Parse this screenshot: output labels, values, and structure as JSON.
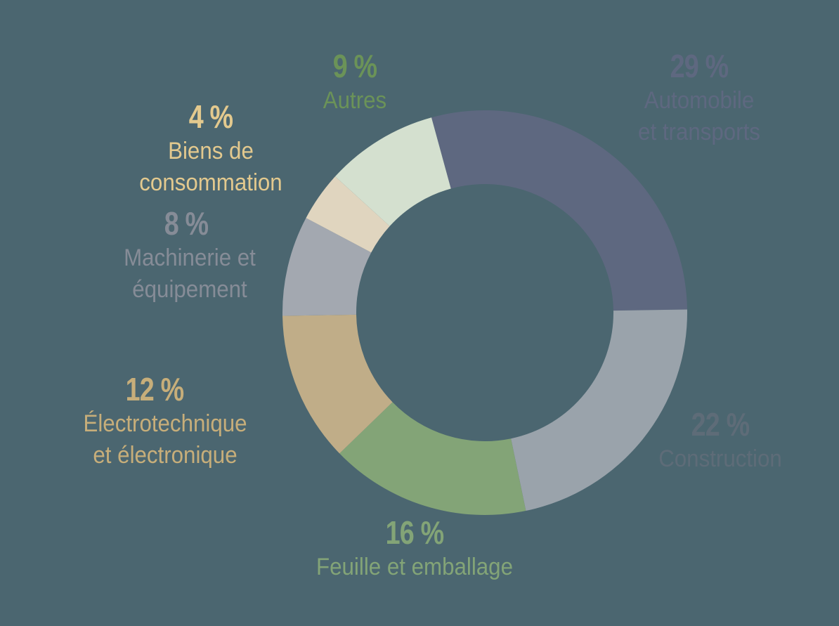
{
  "chart_data": {
    "type": "pie",
    "variant": "donut",
    "title": "",
    "unit": "%",
    "start_angle_deg": -15.3,
    "direction": "clockwise",
    "categories": [
      "Automobile et transports",
      "Construction",
      "Feuille et emballage",
      "Électrotechnique et électronique",
      "Machinerie et équipement",
      "Biens de consommation",
      "Autres"
    ],
    "values": [
      29,
      22,
      16,
      12,
      8,
      4,
      9
    ],
    "slices": [
      {
        "label": "Automobile\net transports",
        "pct_text": "29 %",
        "value": 29,
        "color": "#5e6880",
        "text_color": "#5e6880"
      },
      {
        "label": "Construction",
        "pct_text": "22 %",
        "value": 22,
        "color": "#9aa3ab",
        "text_color": "#5e6c78"
      },
      {
        "label": "Feuille et emballage",
        "pct_text": "16 %",
        "value": 16,
        "color": "#83a477",
        "text_color": "#83a477"
      },
      {
        "label": "Électrotechnique\net électronique",
        "pct_text": "12 %",
        "value": 12,
        "color": "#c0ad88",
        "text_color": "#c7ae7a"
      },
      {
        "label": "Machinerie et\néquipement",
        "pct_text": "8 %",
        "value": 8,
        "color": "#a3a8b0",
        "text_color": "#868c97"
      },
      {
        "label": "Biens de\nconsommation",
        "pct_text": "4 %",
        "value": 4,
        "color": "#e0d5bf",
        "text_color": "#e3c98e"
      },
      {
        "label": "Autres",
        "pct_text": "9 %",
        "value": 9,
        "color": "#d4e0cf",
        "text_color": "#6b9358"
      }
    ],
    "legend": "none (direct labels)",
    "background": "#4b6670"
  }
}
